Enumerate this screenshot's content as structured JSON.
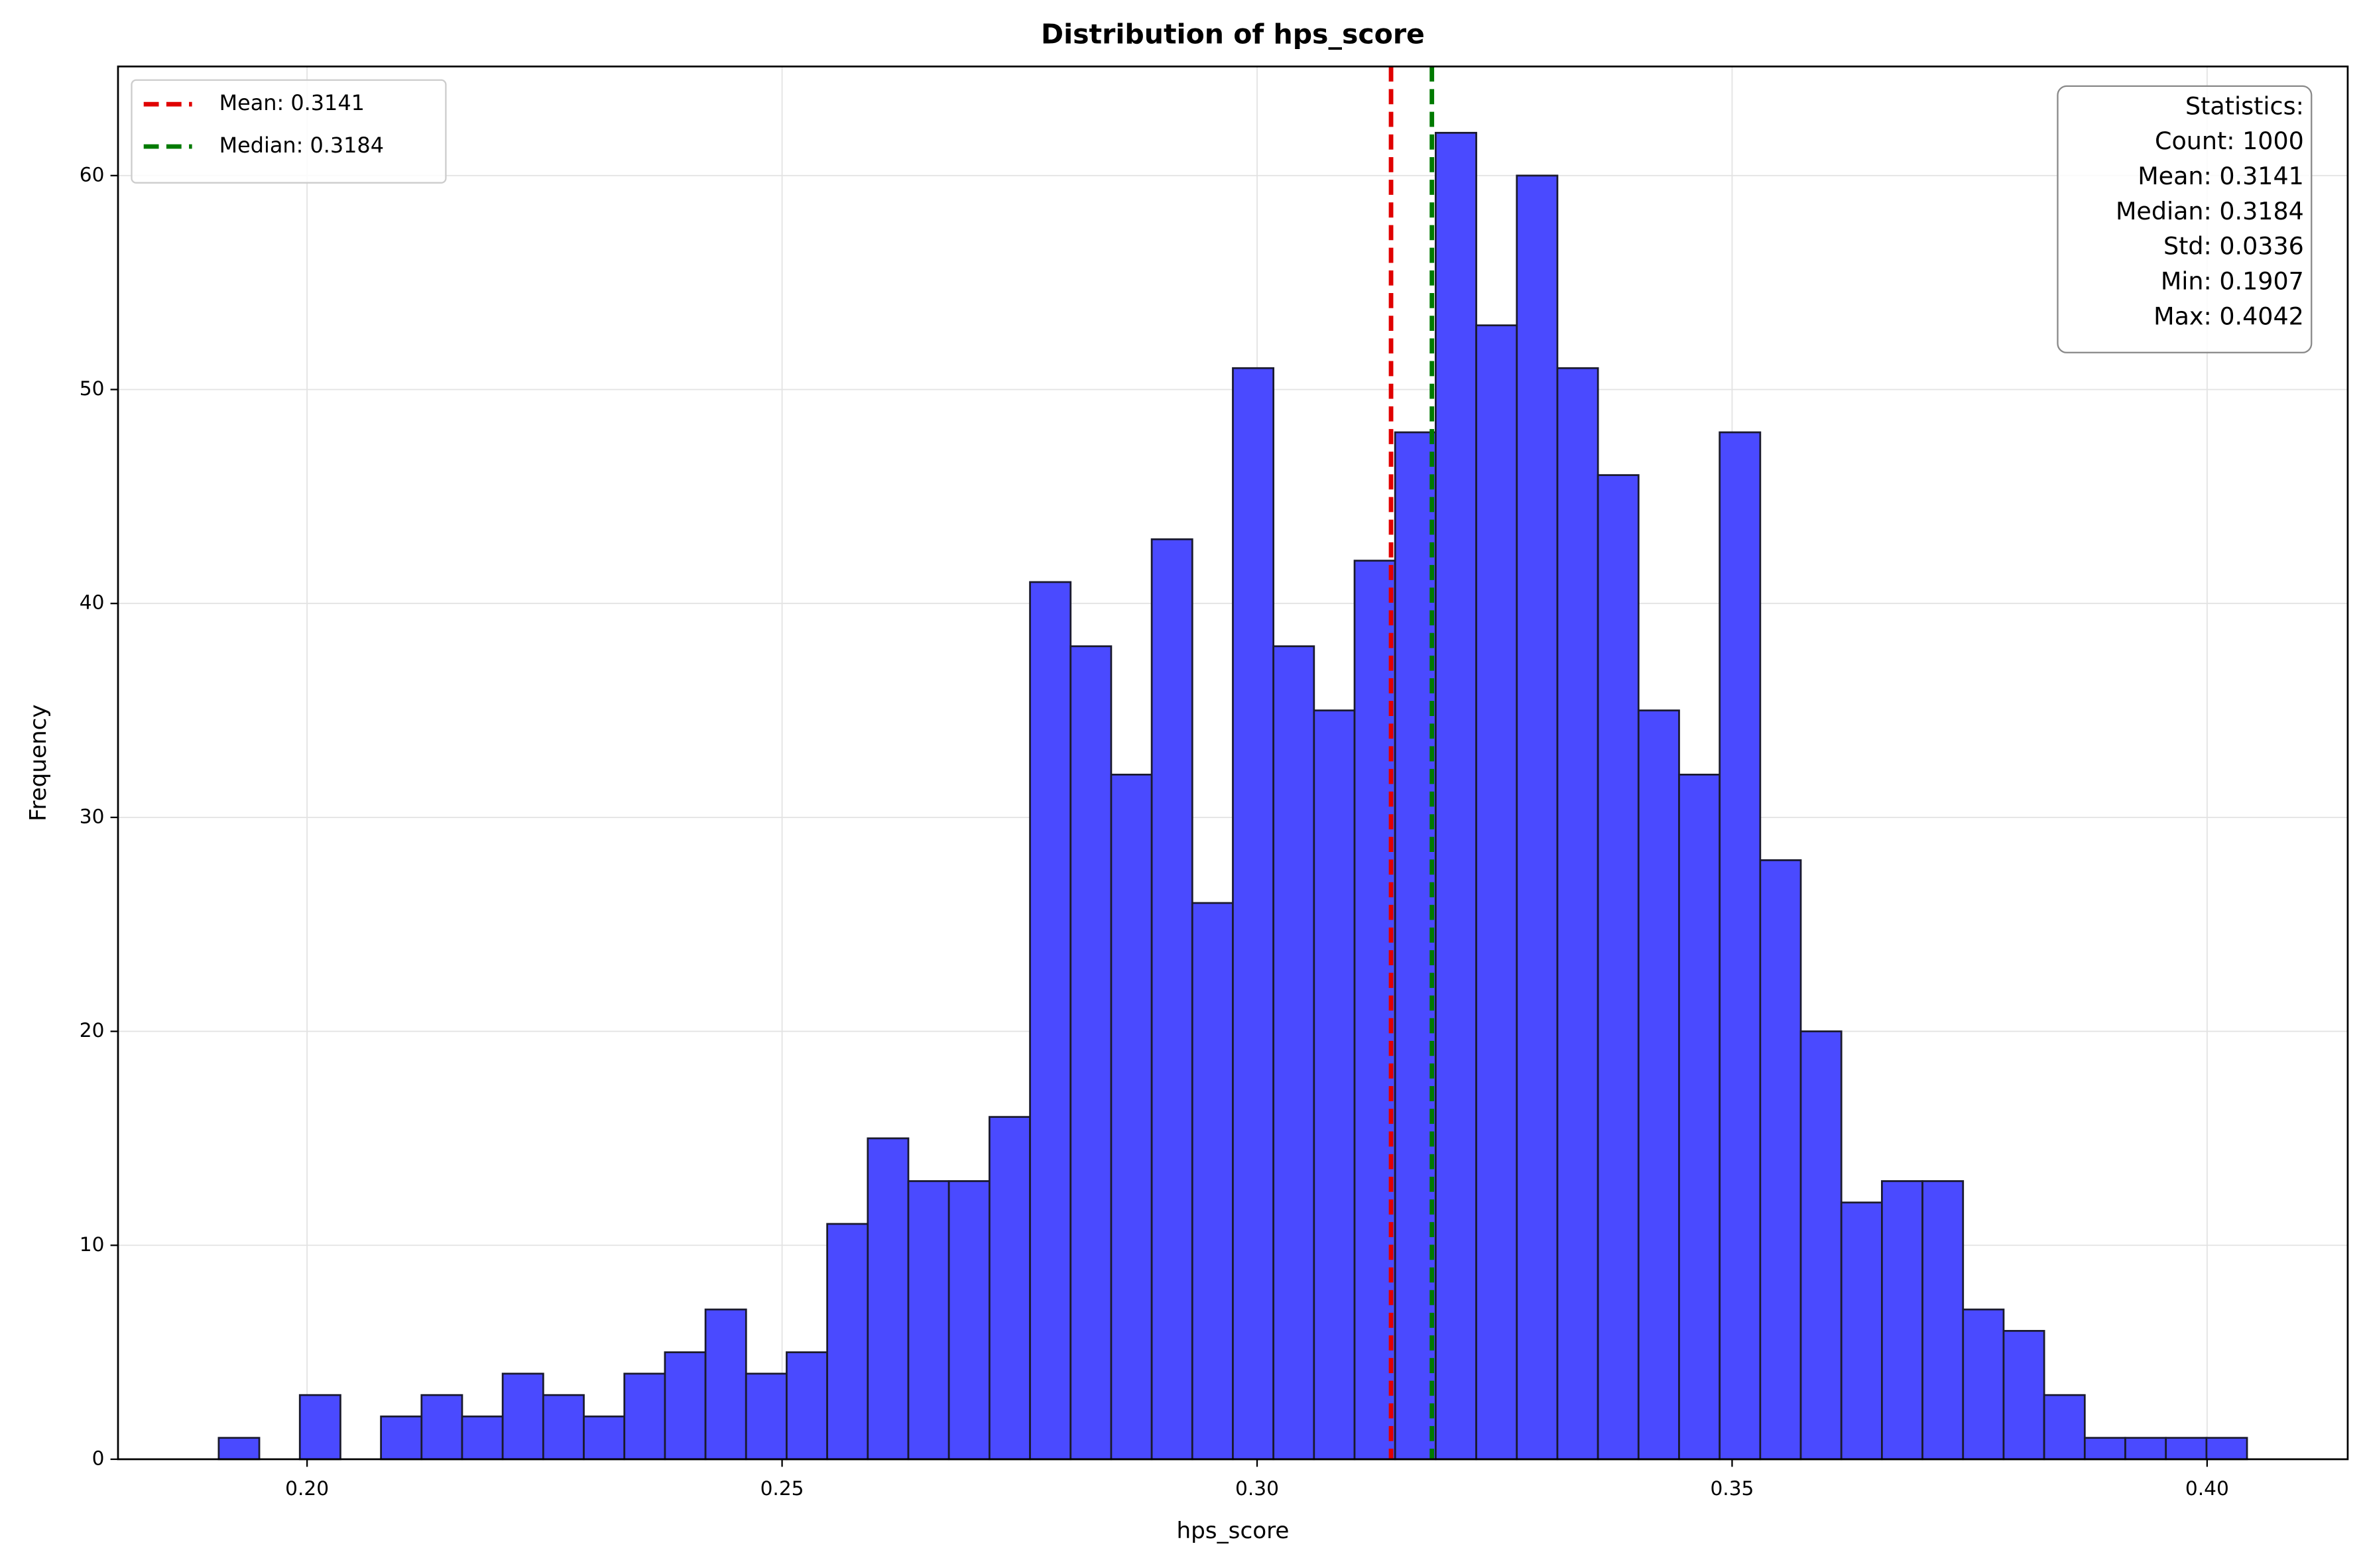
{
  "chart_data": {
    "type": "histogram",
    "title": "Distribution of hps_score",
    "x_label": "hps_score",
    "y_label": "Frequency",
    "bins": [
      0.1907,
      0.19497,
      0.19924,
      0.20351,
      0.20778,
      0.21205,
      0.21632,
      0.22059,
      0.22486,
      0.22913,
      0.2334,
      0.23767,
      0.24194,
      0.24621,
      0.25048,
      0.25475,
      0.25902,
      0.26329,
      0.26756,
      0.27183,
      0.2761,
      0.28037,
      0.28464,
      0.28891,
      0.29318,
      0.29745,
      0.30172,
      0.30599,
      0.31026,
      0.31453,
      0.3188,
      0.32307,
      0.32734,
      0.33161,
      0.33588,
      0.34015,
      0.34442,
      0.34869,
      0.35296,
      0.35723,
      0.3615,
      0.36577,
      0.37004,
      0.37431,
      0.37858,
      0.38285,
      0.38712,
      0.39139,
      0.39566,
      0.39993,
      0.4042
    ],
    "values": [
      1,
      0,
      3,
      0,
      2,
      3,
      2,
      4,
      3,
      2,
      4,
      5,
      7,
      4,
      5,
      11,
      15,
      13,
      13,
      16,
      41,
      38,
      32,
      43,
      26,
      51,
      38,
      35,
      42,
      48,
      62,
      53,
      60,
      51,
      46,
      35,
      32,
      48,
      28,
      20,
      12,
      13,
      13,
      7,
      6,
      3,
      1,
      1,
      1,
      1
    ],
    "color": "#4a4aff",
    "edgecolor": "#1a1a2e",
    "vlines": [
      {
        "name": "Mean: 0.3141",
        "value": 0.3141,
        "color": "#e00000"
      },
      {
        "name": "Median: 0.3184",
        "value": 0.3184,
        "color": "#007a00"
      }
    ],
    "stats_box": [
      "Statistics:",
      "Count: 1000",
      "Mean: 0.3141",
      "Median: 0.3184",
      "Std: 0.0336",
      "Min: 0.1907",
      "Max: 0.4042"
    ],
    "xlim": [
      0.1801,
      0.4148
    ],
    "ylim": [
      0,
      65.1
    ],
    "xticks": [
      {
        "value": 0.2,
        "label": "0.20"
      },
      {
        "value": 0.25,
        "label": "0.25"
      },
      {
        "value": 0.3,
        "label": "0.30"
      },
      {
        "value": 0.35,
        "label": "0.35"
      },
      {
        "value": 0.4,
        "label": "0.40"
      }
    ],
    "yticks": [
      0,
      10,
      20,
      30,
      40,
      50,
      60
    ],
    "grid": true,
    "legend": "upper left"
  }
}
